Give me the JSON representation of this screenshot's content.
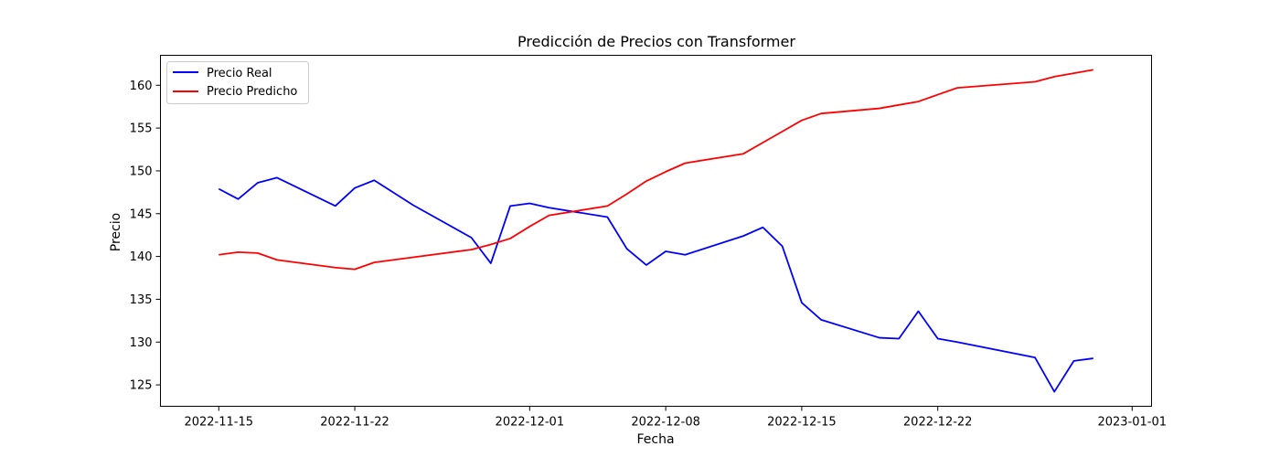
{
  "chart_data": {
    "type": "line",
    "title": "Predicción de Precios con Transformer",
    "xlabel": "Fecha",
    "ylabel": "Precio",
    "xlim": [
      "2022-11-12",
      "2023-01-02"
    ],
    "ylim": [
      122.5,
      163.5
    ],
    "xticks": [
      "2022-11-15",
      "2022-11-22",
      "2022-12-01",
      "2022-12-08",
      "2022-12-15",
      "2022-12-22",
      "2023-01-01"
    ],
    "yticks": [
      125,
      130,
      135,
      140,
      145,
      150,
      155,
      160
    ],
    "grid": false,
    "legend_position": "top-left",
    "series": [
      {
        "name": "Precio Real",
        "color": "#0000ff",
        "points": [
          {
            "x": "2022-11-15",
            "y": 147.9
          },
          {
            "x": "2022-11-16",
            "y": 146.7
          },
          {
            "x": "2022-11-17",
            "y": 148.6
          },
          {
            "x": "2022-11-18",
            "y": 149.2
          },
          {
            "x": "2022-11-21",
            "y": 145.9
          },
          {
            "x": "2022-11-22",
            "y": 148.0
          },
          {
            "x": "2022-11-23",
            "y": 148.9
          },
          {
            "x": "2022-11-25",
            "y": 146.0
          },
          {
            "x": "2022-11-28",
            "y": 142.2
          },
          {
            "x": "2022-11-29",
            "y": 139.2
          },
          {
            "x": "2022-11-30",
            "y": 145.9
          },
          {
            "x": "2022-12-01",
            "y": 146.2
          },
          {
            "x": "2022-12-02",
            "y": 145.7
          },
          {
            "x": "2022-12-05",
            "y": 144.6
          },
          {
            "x": "2022-12-06",
            "y": 140.9
          },
          {
            "x": "2022-12-07",
            "y": 139.0
          },
          {
            "x": "2022-12-08",
            "y": 140.6
          },
          {
            "x": "2022-12-09",
            "y": 140.2
          },
          {
            "x": "2022-12-12",
            "y": 142.4
          },
          {
            "x": "2022-12-13",
            "y": 143.4
          },
          {
            "x": "2022-12-14",
            "y": 141.2
          },
          {
            "x": "2022-12-15",
            "y": 134.6
          },
          {
            "x": "2022-12-16",
            "y": 132.6
          },
          {
            "x": "2022-12-19",
            "y": 130.5
          },
          {
            "x": "2022-12-20",
            "y": 130.4
          },
          {
            "x": "2022-12-21",
            "y": 133.6
          },
          {
            "x": "2022-12-22",
            "y": 130.4
          },
          {
            "x": "2022-12-23",
            "y": 130.0
          },
          {
            "x": "2022-12-27",
            "y": 128.2
          },
          {
            "x": "2022-12-28",
            "y": 124.2
          },
          {
            "x": "2022-12-29",
            "y": 127.8
          },
          {
            "x": "2022-12-30",
            "y": 128.1
          }
        ]
      },
      {
        "name": "Precio Predicho",
        "color": "#ff0000",
        "points": [
          {
            "x": "2022-11-15",
            "y": 140.2
          },
          {
            "x": "2022-11-16",
            "y": 140.5
          },
          {
            "x": "2022-11-17",
            "y": 140.4
          },
          {
            "x": "2022-11-18",
            "y": 139.6
          },
          {
            "x": "2022-11-21",
            "y": 138.7
          },
          {
            "x": "2022-11-22",
            "y": 138.5
          },
          {
            "x": "2022-11-23",
            "y": 139.3
          },
          {
            "x": "2022-11-25",
            "y": 139.9
          },
          {
            "x": "2022-11-28",
            "y": 140.8
          },
          {
            "x": "2022-11-29",
            "y": 141.4
          },
          {
            "x": "2022-11-30",
            "y": 142.1
          },
          {
            "x": "2022-12-01",
            "y": 143.5
          },
          {
            "x": "2022-12-02",
            "y": 144.8
          },
          {
            "x": "2022-12-05",
            "y": 145.9
          },
          {
            "x": "2022-12-06",
            "y": 147.3
          },
          {
            "x": "2022-12-07",
            "y": 148.8
          },
          {
            "x": "2022-12-08",
            "y": 149.9
          },
          {
            "x": "2022-12-09",
            "y": 150.9
          },
          {
            "x": "2022-12-12",
            "y": 152.0
          },
          {
            "x": "2022-12-13",
            "y": 153.3
          },
          {
            "x": "2022-12-14",
            "y": 154.6
          },
          {
            "x": "2022-12-15",
            "y": 155.9
          },
          {
            "x": "2022-12-16",
            "y": 156.7
          },
          {
            "x": "2022-12-19",
            "y": 157.3
          },
          {
            "x": "2022-12-20",
            "y": 157.7
          },
          {
            "x": "2022-12-21",
            "y": 158.1
          },
          {
            "x": "2022-12-22",
            "y": 158.9
          },
          {
            "x": "2022-12-23",
            "y": 159.7
          },
          {
            "x": "2022-12-27",
            "y": 160.4
          },
          {
            "x": "2022-12-28",
            "y": 161.0
          },
          {
            "x": "2022-12-29",
            "y": 161.4
          },
          {
            "x": "2022-12-30",
            "y": 161.8
          }
        ]
      }
    ]
  }
}
